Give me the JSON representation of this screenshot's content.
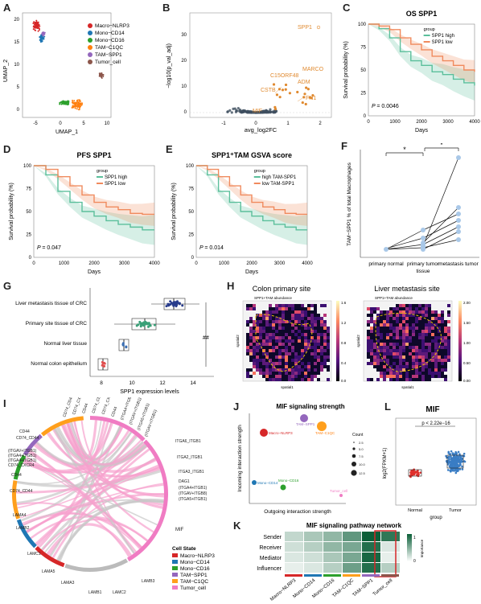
{
  "labels": {
    "A": "A",
    "B": "B",
    "C": "C",
    "D": "D",
    "E": "E",
    "F": "F",
    "G": "G",
    "H": "H",
    "I": "I",
    "J": "J",
    "K": "K",
    "L": "L"
  },
  "colors": {
    "macro_nlrp3": "#d62728",
    "mono_cd14": "#1f77b4",
    "mono_cd16": "#2ca02c",
    "tam_c1qc": "#ff7f0e",
    "tam_spp1": "#9467bd",
    "tumor_cell": "#8c564b",
    "spp1_high": "#5bbf9b",
    "spp1_low": "#f08a5d",
    "chord_pink": "#f7a1cd",
    "heat_dark": "#0b5f38"
  },
  "panelA": {
    "xlabel": "UMAP_1",
    "ylabel": "UMAP_2",
    "xticks": [
      "-5",
      "0",
      "5",
      "10"
    ],
    "yticks": [
      "0",
      "5",
      "10",
      "15",
      "20"
    ],
    "legend": [
      "Macro−NLRP3",
      "Mono−CD14",
      "Mono−CD16",
      "TAM−C1QC",
      "TAM−SPP1",
      "Tumor_cell"
    ]
  },
  "panelB": {
    "xlabel": "avg_log2FC",
    "ylabel": "−log10(p_val_adj)",
    "xticks": [
      "-1",
      "0",
      "1",
      "2"
    ],
    "yticks": [
      "0",
      "10",
      "20",
      "30"
    ],
    "genes": [
      "SPP1",
      "MARCO",
      "C15ORF48",
      "ADM",
      "CSTB",
      "FN1",
      "MIF"
    ]
  },
  "panelC": {
    "title": "OS SPP1",
    "xlabel": "Days",
    "ylabel": "Survival probability (%)",
    "legend_title": "group",
    "legend": [
      "SPP1 high",
      "SPP1 low"
    ],
    "pvalue": "= 0.0046",
    "xticks": [
      "0",
      "1000",
      "2000",
      "3000",
      "4000"
    ],
    "yticks": [
      "0",
      "25",
      "50",
      "75",
      "100"
    ]
  },
  "panelD": {
    "title": "PFS SPP1",
    "xlabel": "Days",
    "ylabel": "Survival probability (%)",
    "legend_title": "group",
    "legend": [
      "SPP1 high",
      "SPP1 low"
    ],
    "pvalue": "= 0.047",
    "xticks": [
      "0",
      "1000",
      "2000",
      "3000",
      "4000"
    ],
    "yticks": [
      "0",
      "25",
      "50",
      "75",
      "100"
    ]
  },
  "panelE": {
    "title": "SPP1⁺TAM GSVA score",
    "xlabel": "Days",
    "ylabel": "Survival probability (%)",
    "legend_title": "group",
    "legend": [
      "high TAM-SPP1",
      "low TAM-SPP1"
    ],
    "pvalue": "= 0.014",
    "xticks": [
      "0",
      "1000",
      "2000",
      "3000",
      "4000"
    ],
    "yticks": [
      "0",
      "25",
      "50",
      "75",
      "100"
    ]
  },
  "panelF": {
    "ylabel": "TAM−SPP1 % of total Macrophages",
    "xlabel": "tissue",
    "categories": [
      "primary normal",
      "primary tumor",
      "metastasis tumor"
    ],
    "sig": [
      "*",
      "*"
    ]
  },
  "panelG": {
    "xlabel": "SPP1 expression levels",
    "categories": [
      "Liver metastasis tissue of CRC",
      "Primary site tissue of CRC",
      "Normal liver tissue",
      "Normal colon epithelium"
    ],
    "xticks": [
      "8",
      "10",
      "12",
      "14"
    ],
    "sig": "##"
  },
  "panelH": {
    "left_title": "Colon primary site",
    "right_title": "Liver metastasis site",
    "left_sub": "SPP1+TAM abundance",
    "right_sub": "SPP1+TAM abundance",
    "axis_x": "spatial1",
    "axis_y": "spatial2",
    "left_scale": [
      "1.6",
      "1.4",
      "1.2",
      "1.0",
      "0.8",
      "0.6",
      "0.4",
      "0.2",
      "0.0"
    ],
    "right_scale": [
      "2.00",
      "1.75",
      "1.50",
      "1.25",
      "1.00",
      "0.75",
      "0.50",
      "0.25",
      "0.00"
    ]
  },
  "panelI": {
    "left_ligands": [
      "CD74_CD44",
      "CD44",
      "CD74_CXCR4",
      "(ITGA4+ITGB1)",
      "(ITGA4+ITGB1)",
      "(ITGAV+ITGB1)",
      "CD74_CD44",
      "CD44"
    ],
    "top_ligands": [
      "CD74_CD44",
      "CD74_CXCR4",
      "CD44",
      "CD74_CD44",
      "CD74_CXCR4",
      "CD44",
      "(ITGA4+ITGB1)",
      "(ITGAV+ITGB1)",
      "(ITGA5+ITGB1)",
      "(ITGAV+ITGB1)"
    ],
    "right_receptors": [
      "ITGA6_ITGB1",
      "ITGA2_ITGB1",
      "ITGA3_ITGB1",
      "DAG1",
      "(ITGA4+ITGB1)",
      "(ITGAV+ITGB8)",
      "(ITGA5+ITGB1)"
    ],
    "bottom_ligands": [
      "LAMA4",
      "LAMB2",
      "LAMC1",
      "LAMA5",
      "LAMA3",
      "LAMB1",
      "LAMC2",
      "LAMB3"
    ],
    "mif": "MIF",
    "legend_title": "Cell State",
    "legend": [
      "Macro−NLRP3",
      "Mono−CD14",
      "Mono−CD16",
      "TAM−SPP1",
      "TAM−C1QC",
      "Tumor_cell"
    ]
  },
  "panelJ": {
    "title": "MIF signaling strength",
    "xlabel": "Outgoing interaction strength",
    "ylabel": "Incoming interaction strength",
    "points": [
      "TAM−SPP1",
      "TAM−C1QC",
      "Macro−NLRP3",
      "Mono−CD14",
      "Mono−CD16",
      "Tumor_cell"
    ],
    "count_title": "Count",
    "count_levels": [
      "2.5",
      "5.0",
      "7.5",
      "10.0",
      "12.5"
    ]
  },
  "panelK": {
    "title": "MIF signaling pathway network",
    "rows": [
      "Sender",
      "Receiver",
      "Mediator",
      "Influencer"
    ],
    "cols": [
      "Macro−NLRP3",
      "Mono−CD14",
      "Mono−CD16",
      "TAM−C1QC",
      "TAM−SPP1",
      "Tumor_cell"
    ],
    "values": [
      [
        0.25,
        0.35,
        0.45,
        0.65,
        1.0,
        0.85
      ],
      [
        0.2,
        0.3,
        0.45,
        0.55,
        0.9,
        0.15
      ],
      [
        0.15,
        0.2,
        0.35,
        0.55,
        0.95,
        0.1
      ],
      [
        0.1,
        0.15,
        0.3,
        0.6,
        0.9,
        0.3
      ]
    ],
    "legend_title": "Importance",
    "legend_ticks": [
      "1",
      "0"
    ]
  },
  "panelL": {
    "title": "MIF",
    "ylabel": "log2(FPKM+1)",
    "xlabel": "group",
    "categories": [
      "Normal",
      "Tumor"
    ],
    "pvalue": "p < 2.22e−16"
  }
}
